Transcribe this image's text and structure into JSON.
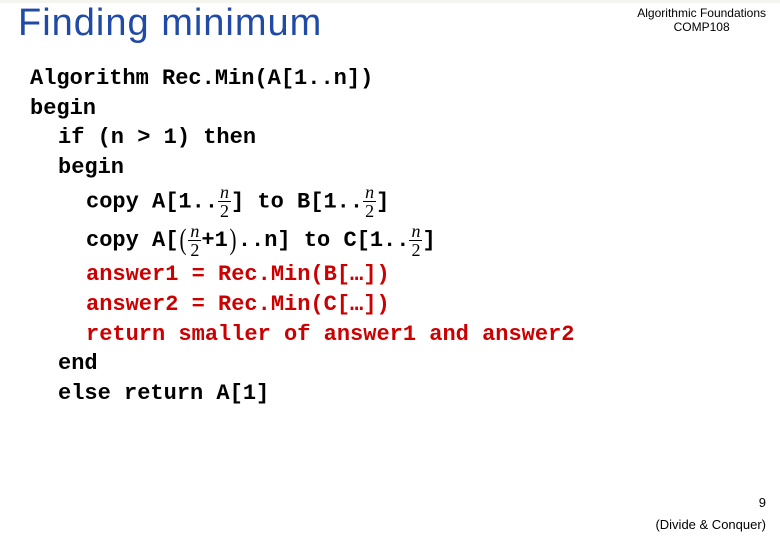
{
  "slide": {
    "title": "Finding minimum",
    "course_line1": "Algorithmic Foundations",
    "course_line2": "COMP108",
    "page_number": "9",
    "footer": "(Divide & Conquer)",
    "title_color": "#1f4aa6",
    "red_color": "#cc0000",
    "font_code": "Courier New"
  },
  "algo": {
    "l0a": "Algorithm",
    "l0b": " Rec.Min(A[1..n])",
    "l1": "begin",
    "l2": "if (n > 1) then",
    "l3": "begin",
    "l4a": "copy A[1..",
    "l4b": "] to B[1..",
    "l4c": "]",
    "l5a": "copy A[",
    "l5b": "+1",
    "l5c": "..n] to C[1..",
    "l5d": "]",
    "l6": "answer1 = Rec.Min(B[…])",
    "l7": "answer2 = Rec.Min(C[…])",
    "l8": "return smaller of answer1 and answer2",
    "l9": "end",
    "l10": "else return A[1]",
    "frac_n": "n",
    "frac_d": "2"
  }
}
